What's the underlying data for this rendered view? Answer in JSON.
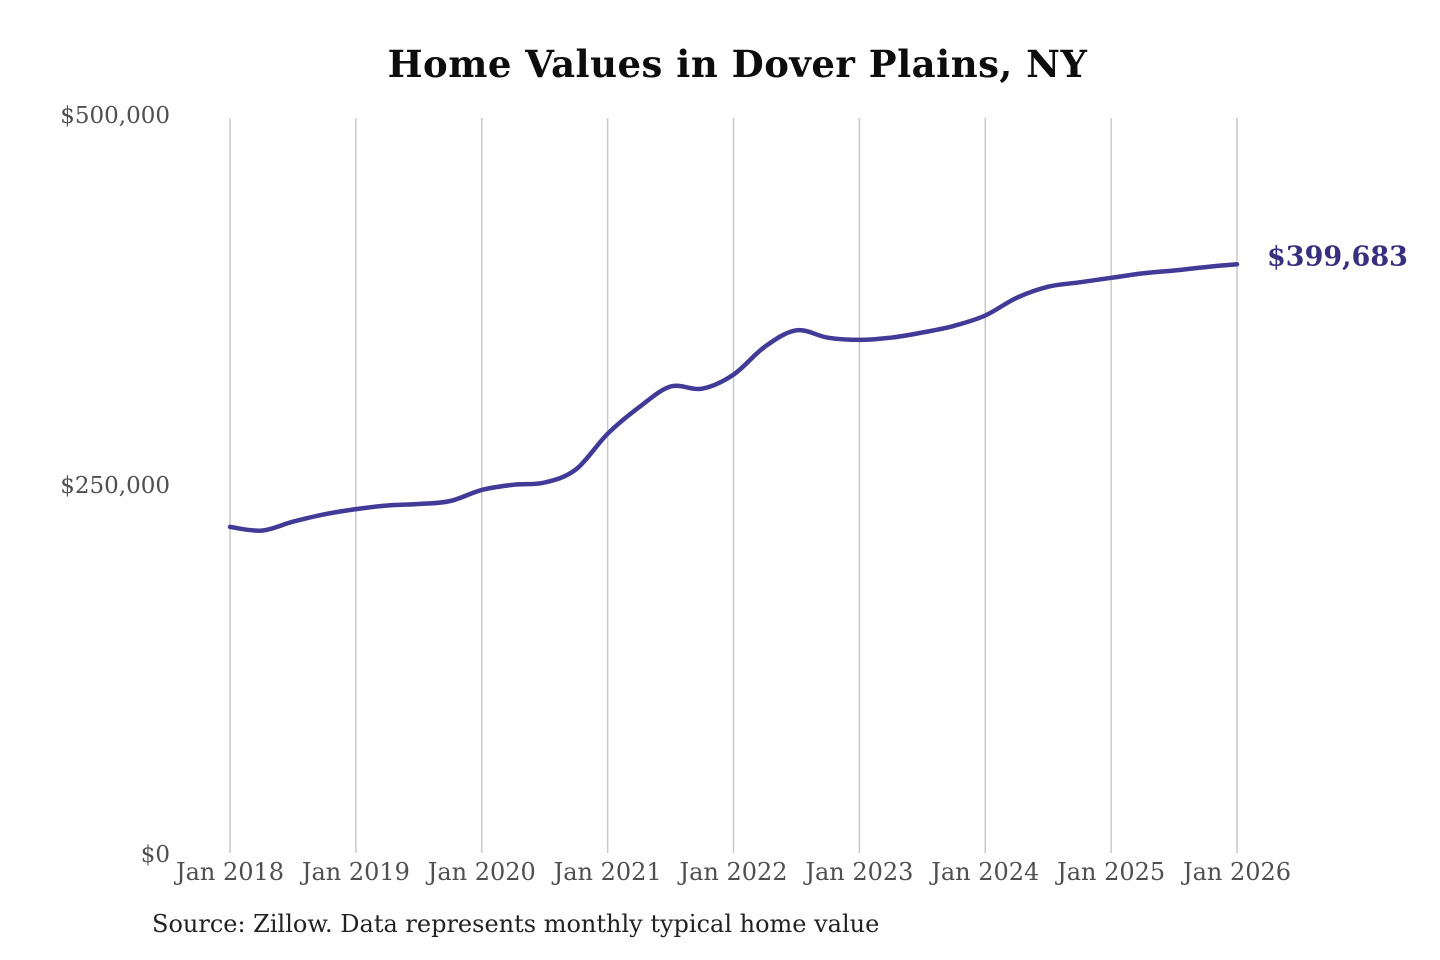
{
  "title": "Home Values in Dover Plains, NY",
  "end_label": "$399,683",
  "source_note": "Source: Zillow. Data represents monthly typical home value",
  "colors": {
    "background": "#ffffff",
    "title": "#0d0d0d",
    "line": "#413a97",
    "grid": "#c9c9c9",
    "tick": "#4f4f4f",
    "end_label": "#37307f",
    "source": "#222222"
  },
  "chart_data": {
    "type": "line",
    "title": "Home Values in Dover Plains, NY",
    "xlabel": "",
    "ylabel": "",
    "legend": "none",
    "grid": "vertical-only",
    "ylim": [
      0,
      500000
    ],
    "y_ticks": [
      {
        "value": 0,
        "label": "$0"
      },
      {
        "value": 250000,
        "label": "$250,000"
      },
      {
        "value": 500000,
        "label": "$500,000"
      }
    ],
    "x_ticks": [
      "Jan 2018",
      "Jan 2019",
      "Jan 2020",
      "Jan 2021",
      "Jan 2022",
      "Jan 2023",
      "Jan 2024",
      "Jan 2025",
      "Jan 2026"
    ],
    "x_range_months": [
      "2018-01",
      "2026-01"
    ],
    "final_value": 399683,
    "series": [
      {
        "name": "Monthly typical home value",
        "points": [
          [
            "2018-01",
            222000
          ],
          [
            "2018-04",
            219500
          ],
          [
            "2018-07",
            225500
          ],
          [
            "2018-10",
            230500
          ],
          [
            "2019-01",
            234000
          ],
          [
            "2019-04",
            236500
          ],
          [
            "2019-07",
            237500
          ],
          [
            "2019-10",
            239500
          ],
          [
            "2020-01",
            247000
          ],
          [
            "2020-04",
            250500
          ],
          [
            "2020-07",
            252000
          ],
          [
            "2020-10",
            261000
          ],
          [
            "2021-01",
            285000
          ],
          [
            "2021-04",
            303000
          ],
          [
            "2021-07",
            317000
          ],
          [
            "2021-10",
            315500
          ],
          [
            "2022-01",
            325000
          ],
          [
            "2022-04",
            344000
          ],
          [
            "2022-07",
            355000
          ],
          [
            "2022-10",
            350000
          ],
          [
            "2023-01",
            348500
          ],
          [
            "2023-04",
            350000
          ],
          [
            "2023-07",
            353500
          ],
          [
            "2023-10",
            358000
          ],
          [
            "2024-01",
            365000
          ],
          [
            "2024-04",
            377000
          ],
          [
            "2024-07",
            384500
          ],
          [
            "2024-10",
            387500
          ],
          [
            "2025-01",
            390500
          ],
          [
            "2025-04",
            393500
          ],
          [
            "2025-07",
            395500
          ],
          [
            "2025-10",
            397800
          ],
          [
            "2026-01",
            399683
          ]
        ]
      }
    ]
  }
}
